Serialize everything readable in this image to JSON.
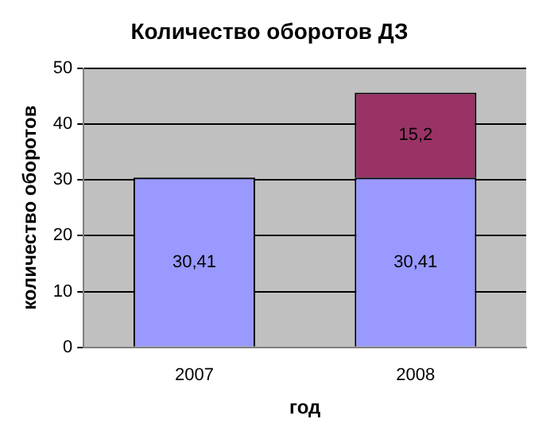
{
  "chart_data": {
    "type": "bar",
    "title": "Количество оборотов ДЗ",
    "xlabel": "год",
    "ylabel": "количество оборотов",
    "categories": [
      "2007",
      "2008"
    ],
    "stacked": true,
    "series": [
      {
        "color": "#9999ff",
        "values": [
          30.41,
          30.41
        ],
        "value_labels": [
          "30,41",
          "30,41"
        ]
      },
      {
        "color": "#993366",
        "values": [
          null,
          15.2
        ],
        "value_labels": [
          null,
          "15,2"
        ]
      }
    ],
    "ylim": [
      0,
      50
    ],
    "yticks": [
      0,
      10,
      20,
      30,
      40,
      50
    ],
    "grid": "y",
    "legend": false
  }
}
